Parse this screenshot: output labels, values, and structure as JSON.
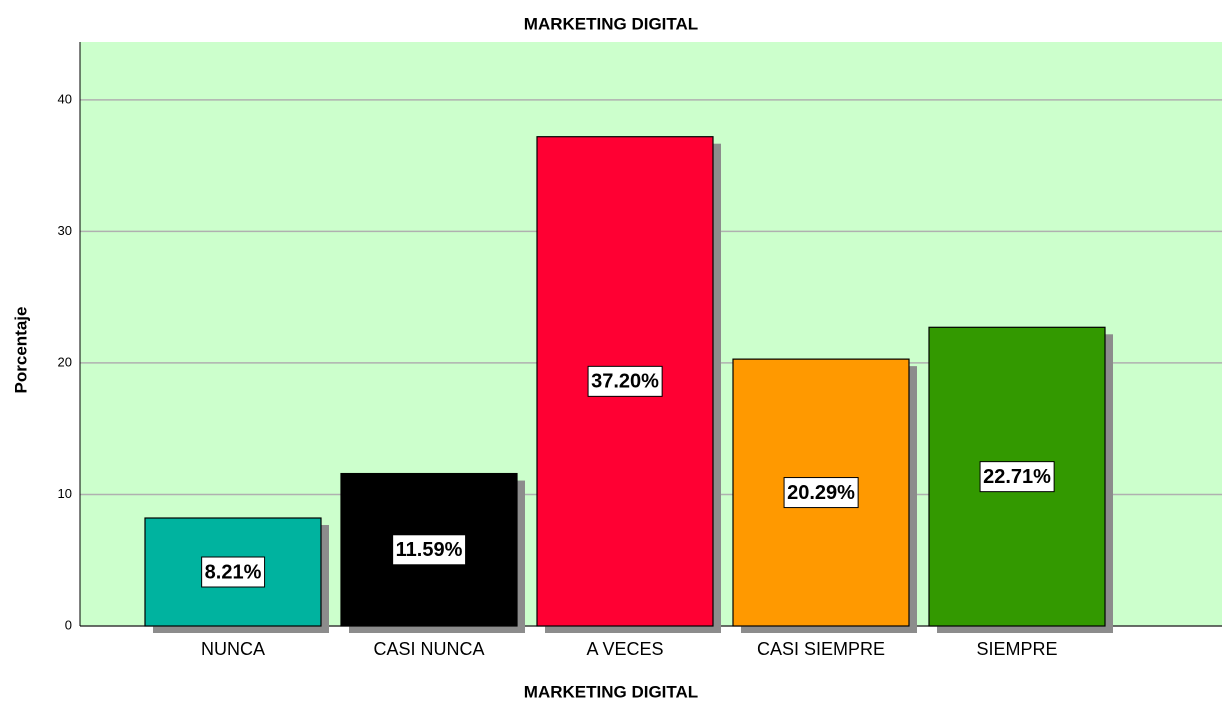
{
  "chart_data": {
    "type": "bar",
    "title": "MARKETING DIGITAL",
    "x_label": "MARKETING DIGITAL",
    "y_label": "Porcentaje",
    "categories": [
      "NUNCA",
      "CASI NUNCA",
      "A VECES",
      "CASI SIEMPRE",
      "SIEMPRE"
    ],
    "values": [
      8.21,
      11.59,
      37.2,
      20.29,
      22.71
    ],
    "value_labels": [
      "8.21%",
      "11.59%",
      "37.20%",
      "20.29%",
      "22.71%"
    ],
    "colors": [
      "#00b39f",
      "#000000",
      "#ff0033",
      "#ff9900",
      "#339900"
    ],
    "ylim": [
      0,
      44.4
    ],
    "yticks": [
      0,
      10,
      20,
      30,
      40
    ],
    "grid": true
  }
}
